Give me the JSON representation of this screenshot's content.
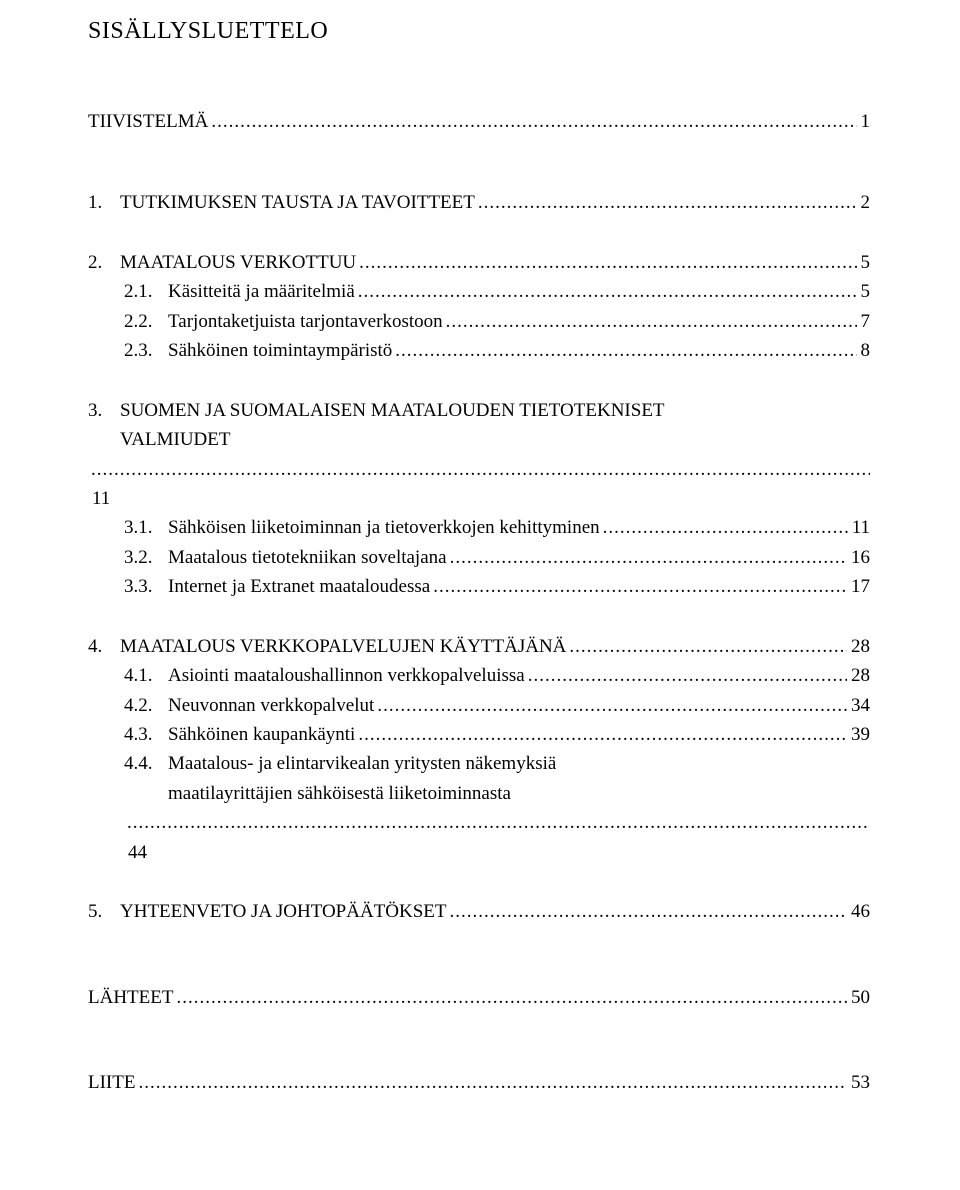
{
  "title": "SISÄLLYSLUETTELO",
  "toc": {
    "tiivistelma": {
      "label": "TIIVISTELMÄ",
      "page": "1"
    },
    "s1": {
      "num": "1.",
      "label": "TUTKIMUKSEN TAUSTA JA TAVOITTEET",
      "page": "2"
    },
    "s2": {
      "num": "2.",
      "label": "MAATALOUS VERKOTTUU",
      "page": "5"
    },
    "s2_1": {
      "num": "2.1.",
      "label": "Käsitteitä ja määritelmiä",
      "page": "5"
    },
    "s2_2": {
      "num": "2.2.",
      "label": "Tarjontaketjuista tarjontaverkostoon",
      "page": "7"
    },
    "s2_3": {
      "num": "2.3.",
      "label": "Sähköinen toimintaympäristö",
      "page": "8"
    },
    "s3": {
      "num": "3.",
      "label_l1": "SUOMEN JA SUOMALAISEN MAATALOUDEN TIETOTEKNISET",
      "label_l2": "VALMIUDET",
      "page": "11"
    },
    "s3_1": {
      "num": "3.1.",
      "label": "Sähköisen liiketoiminnan ja tietoverkkojen kehittyminen",
      "page": "11"
    },
    "s3_2": {
      "num": "3.2.",
      "label": "Maatalous tietotekniikan soveltajana",
      "page": "16"
    },
    "s3_3": {
      "num": "3.3.",
      "label": "Internet ja Extranet maataloudessa",
      "page": "17"
    },
    "s4": {
      "num": "4.",
      "label": "MAATALOUS VERKKOPALVELUJEN KÄYTTÄJÄNÄ",
      "page": "28"
    },
    "s4_1": {
      "num": "4.1.",
      "label": "Asiointi maataloushallinnon verkkopalveluissa",
      "page": "28"
    },
    "s4_2": {
      "num": "4.2.",
      "label": "Neuvonnan verkkopalvelut",
      "page": "34"
    },
    "s4_3": {
      "num": "4.3.",
      "label": "Sähköinen kaupankäynti",
      "page": "39"
    },
    "s4_4": {
      "num": "4.4.",
      "label_l1": "Maatalous- ja elintarvikealan yritysten näkemyksiä",
      "label_l2": "maatilayrittäjien sähköisestä liiketoiminnasta",
      "page": "44"
    },
    "s5": {
      "num": "5.",
      "label": "YHTEENVETO JA JOHTOPÄÄTÖKSET",
      "page": "46"
    },
    "lahteet": {
      "label": "LÄHTEET",
      "page": "50"
    },
    "liite": {
      "label": "LIITE",
      "page": "53"
    }
  }
}
